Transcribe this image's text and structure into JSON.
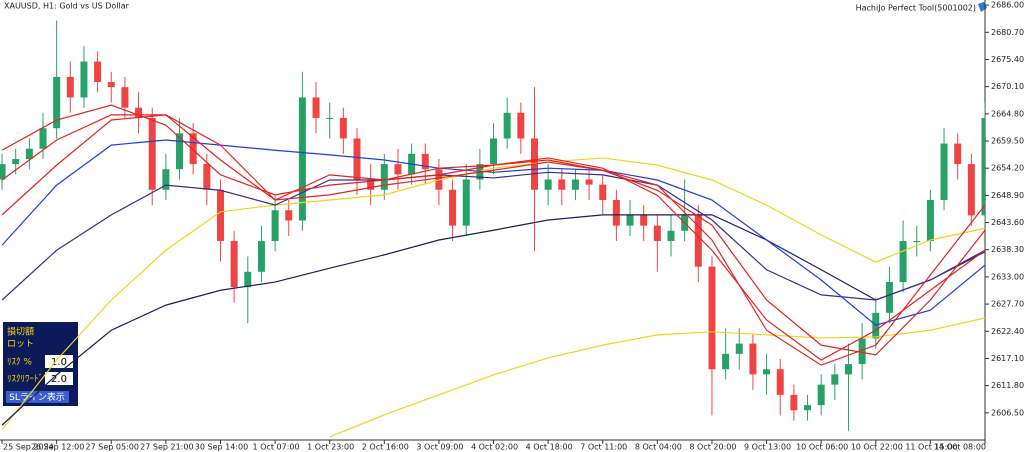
{
  "header": {
    "symbol": "XAUUSD, H1:  Gold vs US Dollar",
    "tool": "HachiJo Perfect Tool(5001002)"
  },
  "panel": {
    "stop_loss": "損切額",
    "lot": "ロット",
    "risk_label": "ﾘｽｸ %",
    "risk_value": "1.0",
    "reward_label": "ﾘｽｸﾘﾜｰﾄﾞ",
    "reward_value": "2.0",
    "button": "SLライン表示"
  },
  "chart_data": {
    "type": "candlestick",
    "xlim": [
      -0.6,
      288
    ],
    "ylim": [
      2601.2,
      2687.0
    ],
    "xticks": [
      {
        "value": 0,
        "label": "25 Sep 2024"
      },
      {
        "value": 16,
        "label": "26 Sep 12:00"
      },
      {
        "value": 32,
        "label": "27 Sep 05:00"
      },
      {
        "value": 48,
        "label": "27 Sep 21:00"
      },
      {
        "value": 64,
        "label": "30 Sep 14:00"
      },
      {
        "value": 80,
        "label": "1 Oct 07:00"
      },
      {
        "value": 96,
        "label": "1 Oct 23:00"
      },
      {
        "value": 112,
        "label": "2 Oct 16:00"
      },
      {
        "value": 128,
        "label": "3 Oct 09:00"
      },
      {
        "value": 144,
        "label": "4 Oct 02:00"
      },
      {
        "value": 160,
        "label": "4 Oct 18:00"
      },
      {
        "value": 176,
        "label": "7 Oct 11:00"
      },
      {
        "value": 192,
        "label": "8 Oct 04:00"
      },
      {
        "value": 208,
        "label": "8 Oct 20:00"
      },
      {
        "value": 224,
        "label": "9 Oct 13:00"
      },
      {
        "value": 240,
        "label": "10 Oct 06:00"
      },
      {
        "value": 256,
        "label": "10 Oct 22:00"
      },
      {
        "value": 272,
        "label": "11 Oct 15:00"
      },
      {
        "value": 288,
        "label": "14 Oct 08:00"
      }
    ],
    "yticks": [
      {
        "value": 2686,
        "label": "2686.00"
      },
      {
        "value": 2680.7,
        "label": "2680.70"
      },
      {
        "value": 2675.4,
        "label": "2675.40"
      },
      {
        "value": 2670.1,
        "label": "2670.10"
      },
      {
        "value": 2664.8,
        "label": "2664.80"
      },
      {
        "value": 2659.5,
        "label": "2659.50"
      },
      {
        "value": 2654.2,
        "label": "2654.20"
      },
      {
        "value": 2648.9,
        "label": "2648.90"
      },
      {
        "value": 2643.6,
        "label": "2643.60"
      },
      {
        "value": 2638.3,
        "label": "2638.30"
      },
      {
        "value": 2633,
        "label": "2633.00"
      },
      {
        "value": 2627.7,
        "label": "2627.70"
      },
      {
        "value": 2622.4,
        "label": "2622.40"
      },
      {
        "value": 2617.1,
        "label": "2617.10"
      },
      {
        "value": 2611.8,
        "label": "2611.80"
      },
      {
        "value": 2606.5,
        "label": "2606.50"
      }
    ],
    "candles": {
      "up_color": "#26a269",
      "down_color": "#ef4444",
      "x": [
        0,
        4,
        8,
        12,
        16,
        20,
        24,
        28,
        32,
        36,
        40,
        44,
        48,
        52,
        56,
        60,
        64,
        68,
        72,
        76,
        80,
        84,
        88,
        92,
        96,
        100,
        104,
        108,
        112,
        116,
        120,
        124,
        128,
        132,
        136,
        140,
        144,
        148,
        152,
        156,
        160,
        164,
        168,
        172,
        176,
        180,
        184,
        188,
        192,
        196,
        200,
        204,
        208,
        212,
        216,
        220,
        224,
        228,
        232,
        236,
        240,
        244,
        248,
        252,
        256,
        260,
        264,
        268,
        272,
        276,
        280,
        284,
        288
      ],
      "open": [
        2652,
        2655,
        2656,
        2658,
        2662,
        2672,
        2668,
        2675,
        2671,
        2670,
        2666,
        2664,
        2650,
        2654,
        2661,
        2655,
        2650,
        2640,
        2631,
        2634,
        2640,
        2646,
        2644,
        2668,
        2664,
        2664,
        2660,
        2652,
        2650,
        2655,
        2653,
        2657,
        2654,
        2650,
        2643,
        2652,
        2655,
        2660,
        2665,
        2660,
        2650,
        2652,
        2650,
        2652,
        2651,
        2648,
        2643,
        2645,
        2643,
        2640,
        2642,
        2645,
        2635,
        2615,
        2618,
        2620,
        2614,
        2615,
        2610,
        2607,
        2608,
        2612,
        2614,
        2616,
        2621,
        2626,
        2632,
        2640,
        2640,
        2648,
        2659,
        2655,
        2645
      ],
      "high": [
        2657,
        2658,
        2660,
        2665,
        2683,
        2675,
        2678,
        2677,
        2673,
        2672,
        2669,
        2666,
        2657,
        2664,
        2663,
        2657,
        2652,
        2642,
        2637,
        2643,
        2649,
        2648,
        2673,
        2671,
        2667,
        2666,
        2662,
        2655,
        2657,
        2658,
        2659,
        2659,
        2656,
        2652,
        2655,
        2658,
        2663,
        2668,
        2667,
        2670,
        2655,
        2654,
        2654,
        2654,
        2653,
        2650,
        2648,
        2647,
        2645,
        2645,
        2652,
        2647,
        2637,
        2623,
        2623,
        2622,
        2618,
        2617,
        2612,
        2610,
        2614,
        2616,
        2620,
        2624,
        2629,
        2635,
        2644,
        2643,
        2650,
        2662,
        2661,
        2657,
        2667
      ],
      "low": [
        2650,
        2653,
        2654,
        2656,
        2660,
        2665,
        2666,
        2669,
        2667,
        2664,
        2661,
        2647,
        2648,
        2652,
        2653,
        2647,
        2636,
        2628,
        2624,
        2632,
        2638,
        2641,
        2642,
        2661,
        2660,
        2657,
        2649,
        2647,
        2648,
        2650,
        2651,
        2651,
        2647,
        2640,
        2641,
        2650,
        2653,
        2658,
        2657,
        2638,
        2647,
        2647,
        2648,
        2648,
        2645,
        2640,
        2641,
        2640,
        2634,
        2637,
        2640,
        2632,
        2606,
        2613,
        2615,
        2611,
        2610,
        2606,
        2605,
        2605,
        2606,
        2609,
        2603,
        2613,
        2619,
        2624,
        2630,
        2637,
        2638,
        2646,
        2652,
        2643,
        2643
      ],
      "close": [
        2655,
        2656,
        2658,
        2662,
        2672,
        2668,
        2675,
        2671,
        2670,
        2666,
        2664,
        2650,
        2654,
        2661,
        2655,
        2650,
        2640,
        2631,
        2634,
        2640,
        2646,
        2644,
        2668,
        2664,
        2664,
        2660,
        2652,
        2650,
        2655,
        2653,
        2657,
        2654,
        2650,
        2643,
        2652,
        2655,
        2660,
        2665,
        2660,
        2650,
        2652,
        2650,
        2652,
        2651,
        2648,
        2643,
        2645,
        2643,
        2640,
        2642,
        2645,
        2635,
        2615,
        2618,
        2620,
        2614,
        2615,
        2610,
        2607,
        2608,
        2612,
        2614,
        2616,
        2621,
        2626,
        2632,
        2640,
        2640,
        2648,
        2659,
        2655,
        2645,
        2664
      ]
    },
    "lines": {
      "x": [
        0,
        16,
        32,
        48,
        64,
        80,
        96,
        112,
        128,
        144,
        160,
        176,
        192,
        208,
        224,
        240,
        256,
        272,
        288
      ],
      "series": [
        {
          "color": "#f5d21e",
          "values": [
            null,
            null,
            null,
            null,
            null,
            null,
            2601.8,
            2606.1,
            2610.0,
            2613.9,
            2617.2,
            2619.7,
            2621.7,
            2622.3,
            2621.7,
            2621.1,
            2621.3,
            2622.6,
            2625.0
          ]
        },
        {
          "color": "#f5d21e",
          "values": [
            2603.2,
            2616.8,
            2628.5,
            2638.2,
            2645.7,
            2647.0,
            2648.0,
            2649.0,
            2651.9,
            2654.2,
            2655.4,
            2656.2,
            2654.8,
            2651.9,
            2647.0,
            2641.2,
            2635.9,
            2640.2,
            2642.5
          ]
        },
        {
          "color": "#1e1e5a",
          "values": [
            2604.1,
            2613.9,
            2622.6,
            2627.5,
            2630.4,
            2632.0,
            2634.7,
            2637.3,
            2640.2,
            2642.1,
            2644.1,
            2645.1,
            2645.1,
            2645.1,
            2640.2,
            2634.4,
            2628.5,
            2632.4,
            2637.9
          ]
        },
        {
          "color": "#3b2d8f",
          "values": [
            2628.5,
            2638.2,
            2645.1,
            2650.9,
            2649.9,
            2647.0,
            2651.9,
            2651.9,
            2652.9,
            2652.3,
            2653.4,
            2652.9,
            2650.9,
            2644.1,
            2634.4,
            2629.5,
            2628.5,
            2632.4,
            2638.2
          ]
        },
        {
          "color": "#1f3fe0",
          "values": [
            2639.2,
            2650.9,
            2658.7,
            2659.7,
            2658.7,
            2657.7,
            2656.8,
            2655.8,
            2654.2,
            2653.4,
            2654.2,
            2653.8,
            2651.9,
            2648.0,
            2640.2,
            2632.4,
            2623.6,
            2626.5,
            2635.3
          ]
        },
        {
          "color": "#e52222",
          "values": [
            2657.7,
            2663.6,
            2666.5,
            2662.6,
            2652.9,
            2649.0,
            2650.9,
            2651.9,
            2652.9,
            2654.8,
            2655.8,
            2653.8,
            2650.9,
            2640.2,
            2622.6,
            2615.8,
            2619.7,
            2633.4,
            2647.0
          ]
        },
        {
          "color": "#e52222",
          "values": [
            2645.1,
            2654.8,
            2663.6,
            2664.6,
            2658.7,
            2648.0,
            2649.0,
            2650.9,
            2652.3,
            2653.8,
            2655.4,
            2653.8,
            2649.9,
            2643.1,
            2628.5,
            2619.7,
            2617.8,
            2628.5,
            2642.1
          ]
        },
        {
          "color": "#e52222",
          "values": [
            2651.9,
            2659.7,
            2664.6,
            2664.6,
            2655.8,
            2648.0,
            2652.9,
            2651.9,
            2654.2,
            2654.8,
            2656.2,
            2654.2,
            2648.9,
            2638.2,
            2624.6,
            2616.8,
            2622.6,
            2630.4,
            2638.2
          ]
        }
      ]
    }
  }
}
